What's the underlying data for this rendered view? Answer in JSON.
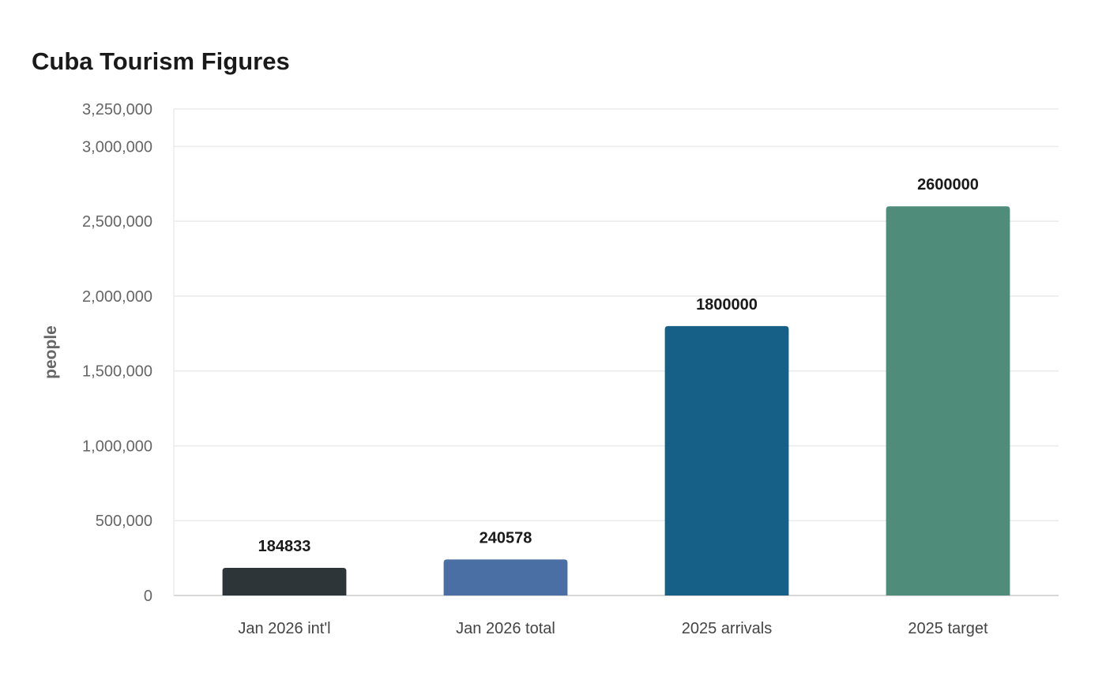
{
  "chart_data": {
    "type": "bar",
    "title": "Cuba Tourism Figures",
    "ylabel": "people",
    "xlabel": "",
    "categories": [
      "Jan 2026 int'l",
      "Jan 2026 total",
      "2025 arrivals",
      "2025 target"
    ],
    "values": [
      184833,
      240578,
      1800000,
      2600000
    ],
    "data_labels": [
      "184833",
      "240578",
      "1800000",
      "2600000"
    ],
    "colors": [
      "#2d3538",
      "#4a6fa5",
      "#166088",
      "#4f8c7a"
    ],
    "ylim": [
      0,
      3250000
    ],
    "yticks": [
      0,
      500000,
      1000000,
      1500000,
      2000000,
      2500000,
      3000000,
      3250000
    ],
    "ytick_labels": [
      "0",
      "500,000",
      "1,000,000",
      "1,500,000",
      "2,000,000",
      "2,500,000",
      "3,000,000",
      "3,250,000"
    ],
    "grid": true,
    "legend": "none"
  }
}
